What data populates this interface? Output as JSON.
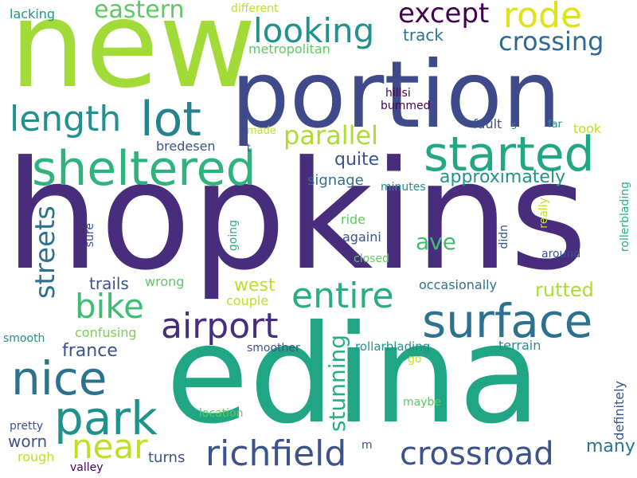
{
  "palette": {
    "dark_purple": "#440154",
    "indigo": "#472d7b",
    "deep_blue": "#3b528b",
    "blue": "#2c728e",
    "teal": "#21918c",
    "sea_green": "#28ae80",
    "green": "#5ec962",
    "lime": "#addc30",
    "yellow": "#fde725"
  },
  "words": [
    {
      "text": "hopkins",
      "color": "#472d7b"
    },
    {
      "text": "edina",
      "color": "#21a685"
    },
    {
      "text": "new",
      "color": "#a2da37"
    },
    {
      "text": "portion",
      "color": "#3e4a89"
    },
    {
      "text": "started",
      "color": "#22a785"
    },
    {
      "text": "sheltered",
      "color": "#2eb37c"
    },
    {
      "text": "surface",
      "color": "#2c728e"
    },
    {
      "text": "lot",
      "color": "#26828e"
    },
    {
      "text": "nice",
      "color": "#2c728e"
    },
    {
      "text": "park",
      "color": "#21918c"
    },
    {
      "text": "crossroad",
      "color": "#3b528b"
    },
    {
      "text": "richfield",
      "color": "#3b528b"
    },
    {
      "text": "airport",
      "color": "#472d7b"
    },
    {
      "text": "entire",
      "color": "#28ae80"
    },
    {
      "text": "looking",
      "color": "#21918c"
    },
    {
      "text": "rode",
      "color": "#dde318"
    },
    {
      "text": "crossing",
      "color": "#31688e"
    },
    {
      "text": "length",
      "color": "#21918c"
    },
    {
      "text": "except",
      "color": "#440154"
    },
    {
      "text": "bike",
      "color": "#3dbc74"
    },
    {
      "text": "near",
      "color": "#bddf26"
    },
    {
      "text": "streets",
      "color": "#2c728e"
    },
    {
      "text": "parallel",
      "color": "#addc30"
    },
    {
      "text": "eastern",
      "color": "#5ec962"
    },
    {
      "text": "stunning",
      "color": "#28ae80"
    },
    {
      "text": "ave",
      "color": "#3dbc74"
    },
    {
      "text": "approximately",
      "color": "#21918c"
    },
    {
      "text": "rutted",
      "color": "#addc30"
    },
    {
      "text": "track",
      "color": "#2c728e"
    },
    {
      "text": "west",
      "color": "#bddf26"
    },
    {
      "text": "many",
      "color": "#2c728e"
    },
    {
      "text": "quite",
      "color": "#3b528b"
    },
    {
      "text": "signage",
      "color": "#2c728e"
    },
    {
      "text": "france",
      "color": "#3b528b"
    },
    {
      "text": "trails",
      "color": "#3b528b"
    },
    {
      "text": "worn",
      "color": "#3b528b"
    },
    {
      "text": "turns",
      "color": "#3b528b"
    },
    {
      "text": "occasionally",
      "color": "#2c728e"
    },
    {
      "text": "metropolitan",
      "color": "#5ec962"
    },
    {
      "text": "definitely",
      "color": "#3b528b"
    },
    {
      "text": "wrong",
      "color": "#5ec962"
    },
    {
      "text": "confusing",
      "color": "#7ad151"
    },
    {
      "text": "bredesen",
      "color": "#3b528b"
    },
    {
      "text": "terrain",
      "color": "#21918c"
    },
    {
      "text": "rough",
      "color": "#bddf26"
    },
    {
      "text": "ride",
      "color": "#5ec962"
    },
    {
      "text": "againi",
      "color": "#3b528b"
    },
    {
      "text": "couple",
      "color": "#bddf26"
    },
    {
      "text": "lacking",
      "color": "#21918c"
    },
    {
      "text": "fault",
      "color": "#3b528b"
    },
    {
      "text": "took",
      "color": "#bddf26"
    },
    {
      "text": "rollarblading",
      "color": "#21918c"
    },
    {
      "text": "smoother",
      "color": "#3b528b"
    },
    {
      "text": "around",
      "color": "#3b528b"
    },
    {
      "text": "closed",
      "color": "#5ec962"
    },
    {
      "text": "hillsi",
      "color": "#440154"
    },
    {
      "text": "bummed",
      "color": "#440154"
    },
    {
      "text": "minutes",
      "color": "#21918c"
    },
    {
      "text": "location",
      "color": "#5ec962"
    },
    {
      "text": "maybe",
      "color": "#5ec962"
    },
    {
      "text": "smooth",
      "color": "#21918c"
    },
    {
      "text": "pretty",
      "color": "#3b528b"
    },
    {
      "text": "valley",
      "color": "#440154"
    },
    {
      "text": "different",
      "color": "#bddf26"
    },
    {
      "text": "made",
      "color": "#bddf26"
    },
    {
      "text": "s",
      "color": "#21918c"
    },
    {
      "text": "far",
      "color": "#21918c"
    },
    {
      "text": "t",
      "color": "#3b528b"
    },
    {
      "text": "go",
      "color": "#bddf26"
    },
    {
      "text": "m",
      "color": "#3b528b"
    },
    {
      "text": "sure",
      "color": "#3b528b"
    },
    {
      "text": "going",
      "color": "#28ae80"
    },
    {
      "text": "didn",
      "color": "#3b528b"
    },
    {
      "text": "really",
      "color": "#bddf26"
    },
    {
      "text": "rollerblading",
      "color": "#28ae80"
    }
  ]
}
